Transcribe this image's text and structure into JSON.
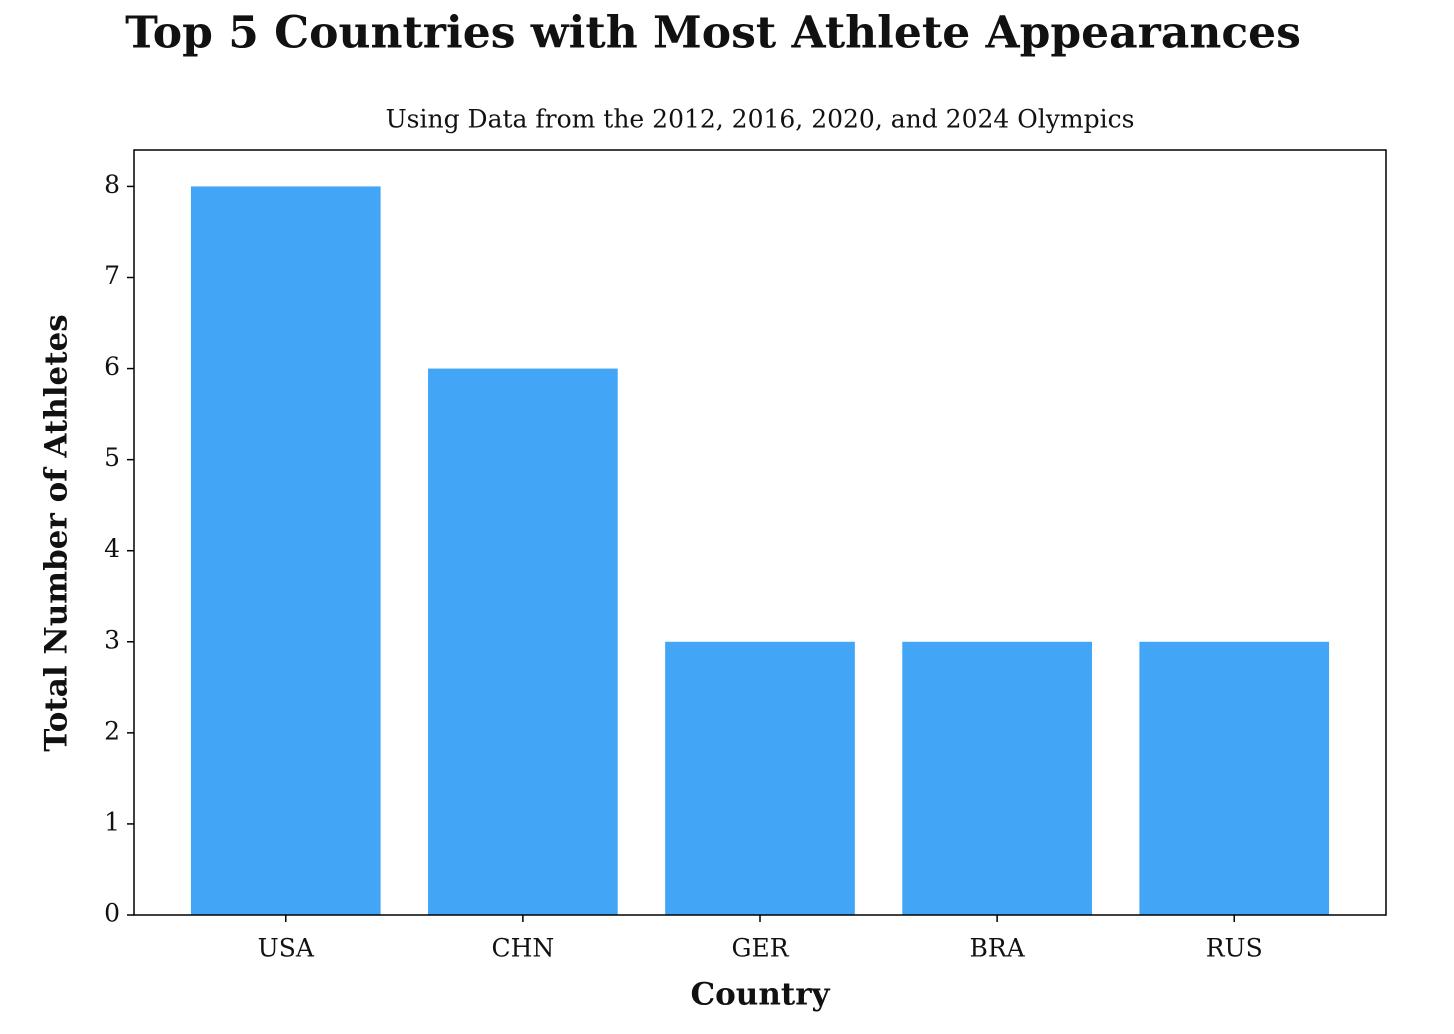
{
  "chart_data": {
    "type": "bar",
    "title": "Top 5 Countries with Most Athlete Appearances",
    "subtitle": "Using Data from the 2012, 2016, 2020, and 2024 Olympics",
    "x_label": "Country",
    "y_label": "Total Number of Athletes",
    "categories": [
      "USA",
      "CHN",
      "GER",
      "BRA",
      "RUS"
    ],
    "values": [
      8,
      6,
      3,
      3,
      3
    ],
    "color": "#42a5f5",
    "ylim": [
      0,
      8.4
    ],
    "yticks": [
      0,
      1,
      2,
      3,
      4,
      5,
      6,
      7,
      8
    ],
    "grid": false
  }
}
